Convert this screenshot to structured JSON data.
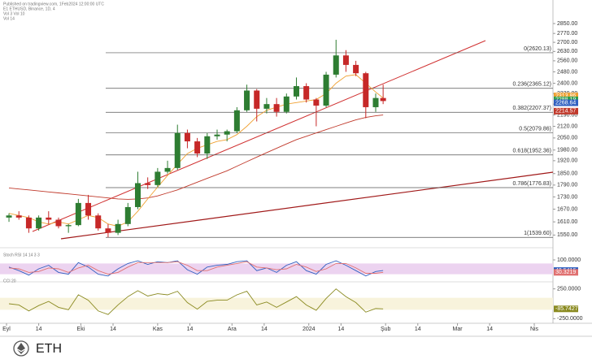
{
  "header": [
    "Published on tradingview.com, 1Feb2024 12:00:00 UTC",
    "E1 ETHUSD, Binance, 1D, 4",
    "Vol 3 Vol 10",
    "Vol 14"
  ],
  "footer": "ETH",
  "chart_data": [
    {
      "type": "candlestick",
      "ylim": [
        1512,
        3050
      ],
      "log": true,
      "up_color": "#2e7d32",
      "down_color": "#c62828",
      "xlim": [
        "2023-09-01",
        "2024-04-01"
      ],
      "xticks": [
        {
          "value": "2023-09-01",
          "label": "Eyl"
        },
        {
          "value": "2023-09-14",
          "label": "14"
        },
        {
          "value": "2023-10-01",
          "label": "Eki"
        },
        {
          "value": "2023-10-14",
          "label": "14"
        },
        {
          "value": "2023-11-01",
          "label": "Kas"
        },
        {
          "value": "2023-11-14",
          "label": "14"
        },
        {
          "value": "2023-12-01",
          "label": "Ara"
        },
        {
          "value": "2023-12-14",
          "label": "14"
        },
        {
          "value": "2024-01-01",
          "label": "2024"
        },
        {
          "value": "2024-01-14",
          "label": "14"
        },
        {
          "value": "2024-02-01",
          "label": "Şub"
        },
        {
          "value": "2024-02-14",
          "label": "14"
        },
        {
          "value": "2024-03-01",
          "label": "Mar"
        },
        {
          "value": "2024-03-14",
          "label": "14"
        },
        {
          "value": "2024-04-01",
          "label": "Nis"
        }
      ],
      "yticks": [
        {
          "value": 2850,
          "label": "2850.00"
        },
        {
          "value": 2770,
          "label": "2770.00"
        },
        {
          "value": 2700,
          "label": "2700.00"
        },
        {
          "value": 2630,
          "label": "2630.00"
        },
        {
          "value": 2560,
          "label": "2560.00"
        },
        {
          "value": 2480,
          "label": "2480.00"
        },
        {
          "value": 2400,
          "label": "2400.00"
        },
        {
          "value": 2330,
          "label": "2330.00"
        },
        {
          "value": 2260,
          "label": "2260.00"
        },
        {
          "value": 2190,
          "label": "2190.00"
        },
        {
          "value": 2120,
          "label": "2120.00"
        },
        {
          "value": 2050,
          "label": "2050.00"
        },
        {
          "value": 1980,
          "label": "1980.00"
        },
        {
          "value": 1920,
          "label": "1920.00"
        },
        {
          "value": 1850,
          "label": "1850.00"
        },
        {
          "value": 1790,
          "label": "1790.00"
        },
        {
          "value": 1730,
          "label": "1730.00"
        },
        {
          "value": 1670,
          "label": "1670.00"
        },
        {
          "value": 1610,
          "label": "1610.00"
        },
        {
          "value": 1550,
          "label": "1550.00"
        }
      ],
      "x": [
        "2023-09-02",
        "2023-09-06",
        "2023-09-10",
        "2023-09-14",
        "2023-09-18",
        "2023-09-22",
        "2023-09-26",
        "2023-09-30",
        "2023-10-04",
        "2023-10-08",
        "2023-10-12",
        "2023-10-16",
        "2023-10-20",
        "2023-10-24",
        "2023-10-28",
        "2023-11-01",
        "2023-11-05",
        "2023-11-09",
        "2023-11-13",
        "2023-11-17",
        "2023-11-21",
        "2023-11-25",
        "2023-11-29",
        "2023-12-03",
        "2023-12-07",
        "2023-12-11",
        "2023-12-15",
        "2023-12-19",
        "2023-12-23",
        "2023-12-27",
        "2023-12-31",
        "2024-01-04",
        "2024-01-08",
        "2024-01-12",
        "2024-01-16",
        "2024-01-20",
        "2024-01-24",
        "2024-01-28",
        "2024-01-31"
      ],
      "open": [
        1630,
        1640,
        1630,
        1580,
        1630,
        1620,
        1590,
        1595,
        1700,
        1640,
        1580,
        1560,
        1600,
        1680,
        1800,
        1790,
        1860,
        1880,
        2080,
        2030,
        1960,
        2060,
        2070,
        2090,
        2220,
        2350,
        2230,
        2260,
        2210,
        2310,
        2380,
        2290,
        2250,
        2460,
        2600,
        2530,
        2470,
        2240,
        2300
      ],
      "high": [
        1650,
        1660,
        1640,
        1640,
        1660,
        1630,
        1600,
        1720,
        1740,
        1650,
        1600,
        1620,
        1700,
        1860,
        1830,
        1880,
        1920,
        2130,
        2100,
        2050,
        2080,
        2100,
        2100,
        2240,
        2390,
        2360,
        2300,
        2300,
        2330,
        2440,
        2400,
        2300,
        2480,
        2720,
        2640,
        2560,
        2480,
        2330,
        2390
      ],
      "low": [
        1610,
        1620,
        1560,
        1570,
        1600,
        1580,
        1560,
        1590,
        1620,
        1570,
        1540,
        1550,
        1590,
        1670,
        1770,
        1780,
        1850,
        1870,
        1990,
        1940,
        1930,
        2040,
        2030,
        2080,
        2210,
        2150,
        2200,
        2180,
        2200,
        2290,
        2270,
        2120,
        2240,
        2440,
        2480,
        2450,
        2170,
        2210,
        2260
      ],
      "close": [
        1640,
        1630,
        1580,
        1630,
        1620,
        1590,
        1595,
        1700,
        1640,
        1580,
        1560,
        1600,
        1680,
        1800,
        1790,
        1860,
        1880,
        2080,
        2030,
        1960,
        2060,
        2070,
        2090,
        2220,
        2350,
        2230,
        2260,
        2210,
        2310,
        2380,
        2290,
        2250,
        2460,
        2600,
        2530,
        2470,
        2240,
        2300,
        2280
      ],
      "series": [
        {
          "color": "#c0392b",
          "values": [
            1775,
            1770,
            1765,
            1760,
            1755,
            1750,
            1745,
            1740,
            1735,
            1730,
            1725,
            1720,
            1718,
            1720,
            1725,
            1735,
            1750,
            1765,
            1785,
            1805,
            1825,
            1845,
            1865,
            1890,
            1915,
            1940,
            1965,
            1990,
            2015,
            2040,
            2060,
            2080,
            2100,
            2120,
            2140,
            2160,
            2175,
            2185,
            2190
          ]
        },
        {
          "color": "#f0a030",
          "values": [
            1650,
            1640,
            1630,
            1610,
            1600,
            1610,
            1600,
            1620,
            1640,
            1630,
            1600,
            1590,
            1610,
            1660,
            1720,
            1780,
            1840,
            1900,
            1960,
            1990,
            2010,
            2030,
            2040,
            2070,
            2120,
            2180,
            2220,
            2240,
            2260,
            2270,
            2280,
            2290,
            2330,
            2400,
            2450,
            2460,
            2400,
            2340,
            2300
          ]
        }
      ],
      "fib": [
        {
          "label": "0(2620.13)",
          "value": 2620.13
        },
        {
          "label": "0.236(2365.12)",
          "value": 2365.12
        },
        {
          "label": "0.382(2207.37)",
          "value": 2207.37
        },
        {
          "label": "0.5(2079.86)",
          "value": 2079.86
        },
        {
          "label": "0.618(1952.36)",
          "value": 1952.36
        },
        {
          "label": "0.786(1776.83)",
          "value": 1776.83
        },
        {
          "label": "1(1539.60)",
          "value": 1539.6
        }
      ],
      "price_labels": [
        {
          "value": 2313.86,
          "color": "#f0a030"
        },
        {
          "value": 2288.19,
          "color": "#2e9d4a"
        },
        {
          "value": 2268.64,
          "color": "#3060c0"
        },
        {
          "value": 2214.57,
          "color": "#c0392b"
        }
      ]
    },
    {
      "type": "line",
      "title": "Stoch RSI 14 14 3 3",
      "ylim": [
        0,
        100
      ],
      "band": [
        20,
        80
      ],
      "band_color": "#ecd3f0",
      "yticks": [
        {
          "value": 100,
          "label": "100.0000"
        }
      ],
      "series": [
        {
          "color": "#3060c0",
          "values": [
            60,
            40,
            15,
            50,
            70,
            30,
            20,
            85,
            60,
            20,
            10,
            50,
            80,
            95,
            75,
            90,
            85,
            95,
            45,
            20,
            60,
            70,
            75,
            90,
            95,
            40,
            55,
            30,
            70,
            90,
            40,
            20,
            75,
            95,
            70,
            40,
            10,
            35,
            40.5416
          ]
        },
        {
          "color": "#e07070",
          "values": [
            55,
            50,
            30,
            35,
            55,
            50,
            30,
            55,
            70,
            40,
            20,
            30,
            60,
            85,
            85,
            85,
            85,
            90,
            70,
            40,
            40,
            60,
            70,
            80,
            90,
            60,
            55,
            45,
            50,
            75,
            60,
            35,
            50,
            80,
            80,
            55,
            25,
            25,
            30.3219
          ]
        }
      ]
    },
    {
      "type": "line",
      "title": "CCI 20",
      "ylim": [
        -300,
        300
      ],
      "band": [
        -100,
        100
      ],
      "band_color": "#f8f3dc",
      "yticks": [
        {
          "value": 250,
          "label": "250.0000"
        },
        {
          "value": -250,
          "label": "-250.0000"
        }
      ],
      "series": [
        {
          "color": "#8a8a20",
          "values": [
            0,
            -20,
            -120,
            -30,
            40,
            -60,
            -100,
            150,
            60,
            -120,
            -180,
            -20,
            120,
            220,
            130,
            170,
            150,
            210,
            20,
            -90,
            40,
            60,
            60,
            150,
            210,
            -20,
            30,
            -60,
            30,
            120,
            -20,
            -110,
            90,
            250,
            120,
            20,
            -140,
            -80,
            -85.7427
          ]
        }
      ]
    }
  ]
}
